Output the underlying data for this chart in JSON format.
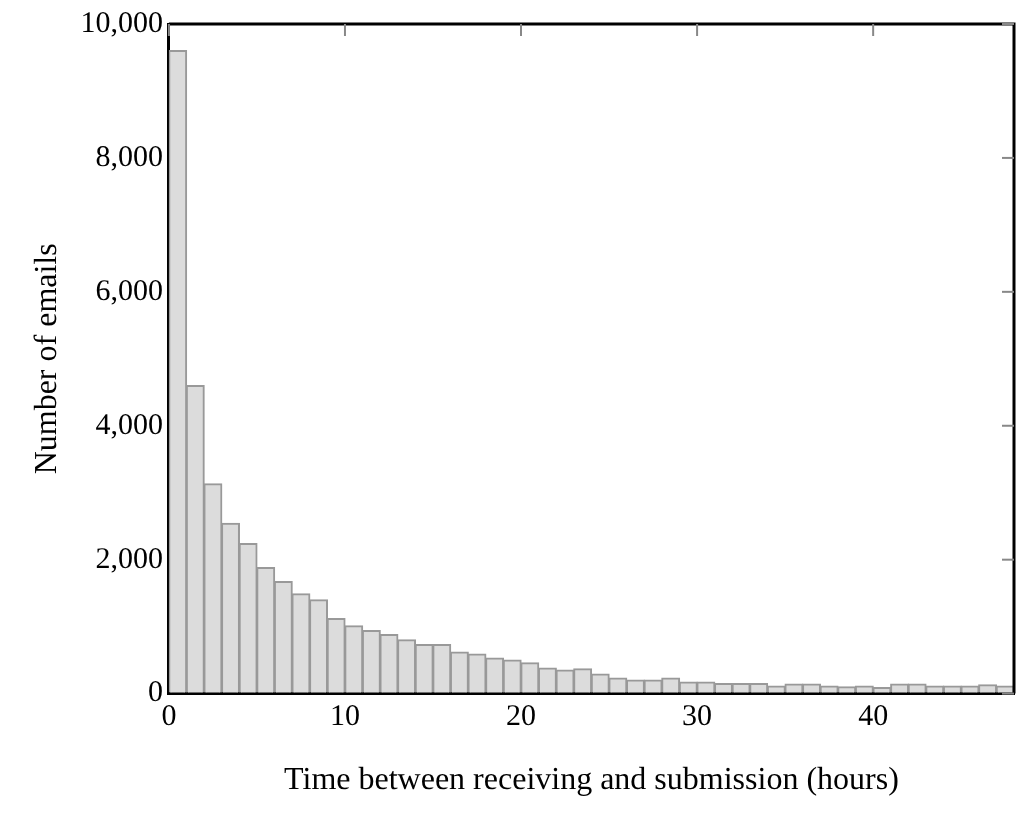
{
  "chart_data": {
    "type": "histogram",
    "xlabel": "Time between receiving and submission (hours)",
    "ylabel": "Number of emails",
    "bins": [
      0,
      1,
      2,
      3,
      4,
      5,
      6,
      7,
      8,
      9,
      10,
      11,
      12,
      13,
      14,
      15,
      16,
      17,
      18,
      19,
      20,
      21,
      22,
      23,
      24,
      25,
      26,
      27,
      28,
      29,
      30,
      31,
      32,
      33,
      34,
      35,
      36,
      37,
      38,
      39,
      40,
      41,
      42,
      43,
      44,
      45,
      46,
      47,
      48
    ],
    "values": [
      9600,
      4600,
      3130,
      2540,
      2240,
      1880,
      1670,
      1490,
      1400,
      1120,
      1010,
      940,
      880,
      800,
      730,
      730,
      620,
      590,
      530,
      500,
      460,
      380,
      350,
      370,
      290,
      230,
      200,
      200,
      230,
      170,
      170,
      150,
      150,
      150,
      110,
      140,
      140,
      110,
      100,
      110,
      90,
      140,
      140,
      110,
      110,
      110,
      130,
      110
    ],
    "color": "#dcdcdc",
    "xlim": [
      0,
      48
    ],
    "xticks": [
      0,
      10,
      20,
      30,
      40
    ],
    "ylim": [
      0,
      10000
    ],
    "yticks": [
      0,
      {
        "value": 2000,
        "label": "2,000"
      },
      {
        "value": 4000,
        "label": "4,000"
      },
      {
        "value": 6000,
        "label": "6,000"
      },
      {
        "value": 8000,
        "label": "8,000"
      },
      {
        "value": 10000,
        "label": "10,000"
      }
    ],
    "grid": false,
    "legend": false
  }
}
